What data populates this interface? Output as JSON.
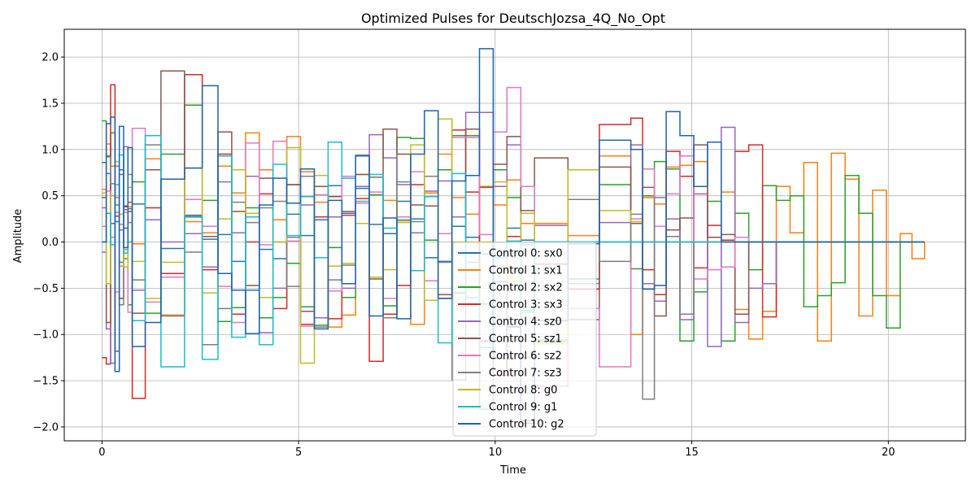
{
  "chart_data": {
    "type": "line",
    "title": "Optimized Pulses for DeutschJozsa_4Q_No_Opt",
    "xlabel": "Time",
    "ylabel": "Amplitude",
    "xlim": [
      -0.96,
      21.96
    ],
    "ylim": [
      -2.15,
      2.3
    ],
    "xticks": [
      0,
      5,
      10,
      15,
      20
    ],
    "yticks": [
      -2.0,
      -1.5,
      -1.0,
      -0.5,
      0.0,
      0.5,
      1.0,
      1.5,
      2.0
    ],
    "grid": true,
    "step": "post",
    "legend_position": "lower-center",
    "x": [
      0.0,
      0.11,
      0.22,
      0.33,
      0.44,
      0.55,
      0.66,
      0.77,
      1.1,
      1.5,
      2.1,
      2.55,
      2.95,
      3.3,
      3.65,
      4.0,
      4.35,
      4.7,
      5.05,
      5.4,
      5.75,
      6.1,
      6.45,
      6.8,
      7.15,
      7.5,
      7.85,
      8.2,
      8.55,
      8.9,
      9.25,
      9.6,
      9.95,
      10.3,
      10.65,
      11.0,
      11.85,
      12.65,
      13.45,
      13.75,
      14.05,
      14.35,
      14.7,
      15.05,
      15.4,
      15.75,
      16.1,
      16.45,
      16.8,
      17.15,
      17.5,
      17.85,
      18.2,
      18.55,
      18.9,
      19.25,
      19.6,
      19.95,
      20.3,
      20.6,
      20.92
    ],
    "series": [
      {
        "name": "Control 0: sx0",
        "color": "#1f77b4",
        "values": [
          0.86,
          0.74,
          0.5,
          0.22,
          0.78,
          0.15,
          0.33,
          0.41,
          0.24,
          -0.07,
          0.27,
          0.03,
          0.08,
          -0.21,
          -0.52,
          -0.08,
          -0.18,
          0.3,
          0.07,
          0.24,
          0.61,
          0.31,
          0.58,
          0.19,
          0.09,
          0.44,
          0.25,
          -0.17,
          -0.21,
          0.17,
          0.05,
          -0.13,
          -0.43,
          0.15,
          0.02,
          0.0,
          0.0,
          0.0,
          0.0,
          0.0,
          0.0,
          0.0,
          0.0,
          0.0,
          0.0,
          0.0,
          0.0,
          0.0,
          0.0,
          0.0,
          0.0,
          0.0,
          0.0,
          0.0,
          0.0,
          0.0,
          0.0,
          0.0,
          0.0,
          0.0,
          0.0
        ]
      },
      {
        "name": "Control 1: sx1",
        "color": "#ff7f0e",
        "values": [
          0.57,
          1.06,
          0.82,
          0.48,
          0.19,
          -0.08,
          0.38,
          -0.02,
          0.9,
          -0.79,
          0.22,
          0.1,
          0.82,
          0.53,
          1.18,
          0.78,
          0.24,
          1.14,
          0.76,
          0.43,
          -0.92,
          -0.79,
          0.73,
          0.7,
          0.45,
          0.23,
          -0.89,
          0.53,
          0.95,
          0.48,
          0.3,
          0.6,
          0.4,
          0.67,
          0.2,
          0.2,
          0.07,
          0.93,
          -1.0,
          0.48,
          0.41,
          0.81,
          0.83,
          0.87,
          0.0,
          0.54,
          -0.73,
          -1.05,
          -0.75,
          0.6,
          0.1,
          0.86,
          -1.07,
          0.96,
          0.68,
          -0.8,
          0.56,
          -0.58,
          0.09,
          -0.18,
          0.0
        ]
      },
      {
        "name": "Control 2: sx2",
        "color": "#2ca02c",
        "values": [
          1.31,
          0.93,
          1.18,
          0.4,
          -0.22,
          -0.18,
          -0.68,
          0.65,
          -0.77,
          0.95,
          1.48,
          0.45,
          -0.86,
          -0.71,
          0.37,
          -0.82,
          -0.6,
          -0.23,
          -0.7,
          -0.9,
          -0.06,
          -0.6,
          0.42,
          0.51,
          -0.69,
          1.13,
          1.12,
          0.02,
          0.78,
          1.15,
          1.15,
          -0.67,
          0.78,
          0.48,
          -0.74,
          -1.06,
          -0.4,
          0.62,
          -0.29,
          0.5,
          0.87,
          0.79,
          -1.07,
          -0.54,
          0.44,
          -1.07,
          0.31,
          -0.3,
          0.61,
          0.45,
          0.5,
          -0.7,
          -0.58,
          -0.44,
          0.72,
          0.31,
          -0.58,
          -0.93,
          0.0,
          0.0,
          0.0
        ]
      },
      {
        "name": "Control 3: sx3",
        "color": "#d62728",
        "values": [
          -1.25,
          -1.32,
          1.7,
          0.28,
          -0.61,
          0.39,
          0.43,
          -1.69,
          0.37,
          -0.34,
          1.81,
          -0.3,
          0.95,
          -0.78,
          0.0,
          0.52,
          -0.72,
          0.62,
          -0.89,
          0.27,
          -0.83,
          0.29,
          0.47,
          -1.29,
          -0.78,
          -0.47,
          0.62,
          -0.42,
          -0.61,
          1.21,
          0.54,
          -1.07,
          -1.44,
          0.06,
          -1.96,
          -0.24,
          -0.51,
          1.27,
          1.34,
          -0.3,
          -0.57,
          0.98,
          0.71,
          -0.28,
          0.18,
          0.02,
          0.98,
          1.05,
          -0.81,
          0.0,
          0.0,
          0.0,
          0.0,
          0.0,
          0.0,
          0.0,
          0.0,
          0.0,
          0.0,
          0.0,
          0.0
        ]
      },
      {
        "name": "Control 4: sz0",
        "color": "#9467bd",
        "values": [
          0.37,
          -0.94,
          -1.31,
          0.82,
          0.13,
          0.35,
          0.21,
          -0.52,
          0.24,
          0.0,
          0.09,
          -0.27,
          0.65,
          0.1,
          0.71,
          -0.98,
          -0.5,
          0.05,
          0.4,
          -0.82,
          0.27,
          -0.5,
          0.6,
          1.16,
          0.91,
          0.62,
          0.1,
          0.55,
          0.66,
          0.27,
          1.4,
          1.4,
          0.6,
          1.05,
          -1.25,
          0.18,
          -0.45,
          0.21,
          1.05,
          -0.45,
          -0.64,
          0.25,
          -0.84,
          0.52,
          -1.13,
          1.24,
          -0.87,
          -0.5,
          -0.45,
          0.0,
          0.0,
          0.0,
          0.0,
          0.0,
          0.0,
          0.0,
          0.0,
          0.0,
          0.0,
          0.0,
          0.0
        ]
      },
      {
        "name": "Control 5: sz1",
        "color": "#8c564b",
        "values": [
          0.48,
          -0.87,
          0.2,
          -1.18,
          0.73,
          0.38,
          0.36,
          -0.77,
          0.78,
          1.85,
          0.29,
          0.06,
          1.19,
          0.33,
          -0.47,
          0.69,
          0.0,
          0.62,
          -0.75,
          0.6,
          0.49,
          0.33,
          0.73,
          -0.4,
          1.22,
          0.95,
          0.4,
          0.39,
          -0.57,
          -0.55,
          1.22,
          0.59,
          0.84,
          1.14,
          0.34,
          0.91,
          -0.84,
          0.81,
          0.2,
          0.59,
          -0.8,
          0.13,
          0.26,
          1.05,
          0.05,
          0.08,
          -0.78,
          0.0,
          0.0,
          0.0,
          0.0,
          0.0,
          0.0,
          0.0,
          0.0,
          0.0,
          0.0,
          0.0,
          0.0,
          0.0,
          0.0
        ]
      },
      {
        "name": "Control 6: sz2",
        "color": "#e377c2",
        "values": [
          0.17,
          0.55,
          0.05,
          -0.54,
          -0.26,
          0.32,
          -0.76,
          1.23,
          -0.65,
          -0.38,
          0.46,
          0.17,
          -0.48,
          -0.87,
          1.07,
          -0.03,
          1.09,
          0.01,
          -0.91,
          0.51,
          -0.53,
          0.71,
          0.42,
          0.54,
          -0.61,
          0.27,
          0.76,
          -0.42,
          0.09,
          1.13,
          1.13,
          0.08,
          1.19,
          1.67,
          0.6,
          -1.56,
          -0.72,
          -1.35,
          0.25,
          0.79,
          0.17,
          0.52,
          0.93,
          -0.4,
          -0.3,
          -0.27,
          0.05,
          0.0,
          0.0,
          0.0,
          0.0,
          0.0,
          0.0,
          0.0,
          0.0,
          0.0,
          0.0,
          0.0,
          0.0,
          0.0,
          0.0
        ]
      },
      {
        "name": "Control 7: sz3",
        "color": "#7f7f7f",
        "values": [
          -0.11,
          0.92,
          0.63,
          0.32,
          -0.68,
          1.03,
          0.73,
          -0.41,
          1.05,
          -0.8,
          -0.11,
          -1.11,
          -0.72,
          0.43,
          0.21,
          0.37,
          0.44,
          -0.48,
          0.71,
          -0.92,
          -0.41,
          -0.25,
          0.94,
          0.7,
          -0.82,
          0.65,
          0.22,
          0.71,
          -0.22,
          -1.49,
          -0.22,
          -1.81,
          -0.26,
          -0.91,
          -0.03,
          -1.08,
          0.46,
          -0.21,
          0.3,
          -1.7,
          0.48,
          0.06,
          -0.78,
          0.0,
          0.0,
          0.0,
          0.0,
          0.0,
          0.0,
          0.0,
          0.0,
          0.0,
          0.0,
          0.0,
          0.0,
          0.0,
          0.0,
          0.0,
          0.0,
          0.0,
          0.0
        ]
      },
      {
        "name": "Control 8: g0",
        "color": "#bcbd22",
        "values": [
          0.53,
          -0.45,
          0.5,
          0.87,
          0.3,
          -0.27,
          0.59,
          -0.21,
          -0.61,
          -0.22,
          0.8,
          -0.55,
          0.25,
          0.78,
          0.31,
          -0.6,
          0.0,
          1.02,
          -1.31,
          0.72,
          -0.26,
          -0.23,
          0.2,
          -0.38,
          -0.3,
          0.21,
          1.05,
          -0.63,
          1.33,
          0.0,
          0.0,
          0.0,
          0.65,
          -0.43,
          0.31,
          -1.1,
          0.78,
          0.34,
          0.22,
          0.0,
          0.0,
          0.0,
          0.0,
          0.0,
          0.0,
          0.0,
          0.0,
          0.0,
          0.0,
          0.0,
          0.0,
          0.0,
          0.0,
          0.0,
          0.0,
          0.0,
          0.0,
          0.0,
          0.0,
          0.0,
          0.0
        ]
      },
      {
        "name": "Control 9: g1",
        "color": "#17becf",
        "values": [
          0.0,
          0.31,
          -0.03,
          0.62,
          0.94,
          -0.12,
          0.0,
          -0.85,
          1.15,
          -1.35,
          0.28,
          -1.27,
          0.93,
          -1.03,
          0.27,
          -1.11,
          0.84,
          0.07,
          0.49,
          -0.17,
          1.08,
          0.69,
          0.44,
          0.73,
          0.15,
          0.24,
          -0.31,
          0.49,
          -1.09,
          0.74,
          -0.6,
          -1.14,
          -0.17,
          0.01,
          -0.76,
          0.0,
          0.0,
          0.0,
          0.0,
          0.0,
          0.0,
          0.0,
          0.0,
          0.0,
          0.0,
          0.0,
          0.0,
          0.0,
          0.0,
          0.0,
          0.0,
          0.0,
          0.0,
          0.0,
          0.0,
          0.0,
          0.0,
          0.0,
          0.0,
          0.0,
          0.0
        ]
      },
      {
        "name": "Control 10: g2",
        "color": "#1f63a8",
        "values": [
          0.0,
          1.28,
          1.35,
          -1.4,
          1.25,
          -0.06,
          1.02,
          -1.13,
          -0.87,
          0.68,
          0.8,
          1.69,
          -0.34,
          -0.52,
          -0.99,
          0.4,
          0.69,
          0.42,
          0.79,
          -0.94,
          0.45,
          -0.45,
          0.93,
          -0.8,
          0.26,
          -0.83,
          0.95,
          1.42,
          -0.61,
          0.66,
          0.72,
          2.09,
          -1.26,
          -0.92,
          -1.93,
          -0.85,
          -0.02,
          1.1,
          1.0,
          -0.51,
          -0.47,
          1.41,
          1.15,
          0.6,
          1.08,
          0.0,
          0.0,
          0.0,
          0.0,
          0.0,
          0.0,
          0.0,
          0.0,
          0.0,
          0.0,
          0.0,
          0.0,
          0.0,
          0.0,
          0.0,
          0.0
        ]
      }
    ]
  }
}
